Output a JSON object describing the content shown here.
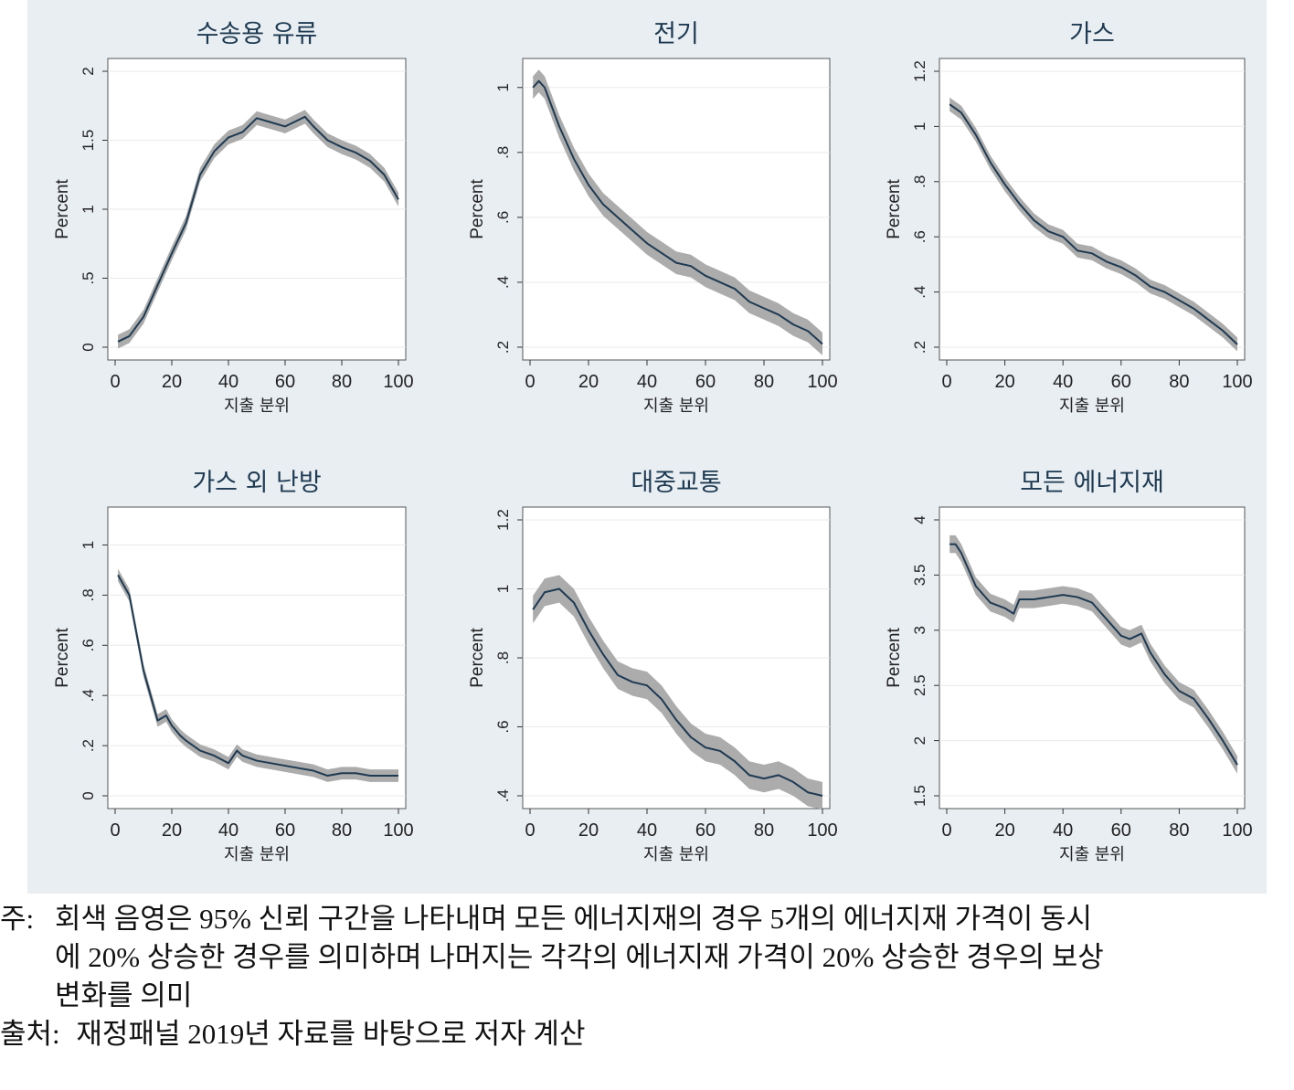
{
  "chart_data": [
    {
      "type": "area",
      "title": "수송용 유류",
      "xlabel": "지출 분위",
      "ylabel": "Percent",
      "xlim": [
        0,
        100
      ],
      "ylim": [
        0,
        2
      ],
      "xticks": [
        0,
        20,
        40,
        60,
        80,
        100
      ],
      "xtick_labels": [
        "0",
        "20",
        "40",
        "60",
        "80",
        "100"
      ],
      "yticks": [
        0,
        0.5,
        1,
        1.5,
        2
      ],
      "ytick_labels": [
        "0",
        ".5",
        "1",
        "1.5",
        "2"
      ],
      "ci_width": 0.05,
      "x": [
        1,
        5,
        10,
        15,
        20,
        25,
        30,
        35,
        40,
        45,
        50,
        55,
        60,
        65,
        67,
        70,
        75,
        80,
        85,
        90,
        95,
        100
      ],
      "y": [
        0.04,
        0.08,
        0.22,
        0.45,
        0.68,
        0.9,
        1.25,
        1.42,
        1.52,
        1.56,
        1.66,
        1.63,
        1.6,
        1.65,
        1.67,
        1.6,
        1.5,
        1.45,
        1.41,
        1.35,
        1.25,
        1.07
      ]
    },
    {
      "type": "area",
      "title": "전기",
      "xlabel": "지출 분위",
      "ylabel": "Percent",
      "xlim": [
        0,
        100
      ],
      "ylim": [
        0.2,
        1.05
      ],
      "xticks": [
        0,
        20,
        40,
        60,
        80,
        100
      ],
      "xtick_labels": [
        "0",
        "20",
        "40",
        "60",
        "80",
        "100"
      ],
      "yticks": [
        0.2,
        0.4,
        0.6,
        0.8,
        1
      ],
      "ytick_labels": [
        ".2",
        ".4",
        ".6",
        ".8",
        "1"
      ],
      "ci_width": 0.035,
      "x": [
        1,
        3,
        5,
        10,
        15,
        20,
        25,
        30,
        35,
        40,
        45,
        50,
        55,
        60,
        65,
        70,
        75,
        80,
        85,
        90,
        95,
        100
      ],
      "y": [
        1.0,
        1.02,
        1.0,
        0.88,
        0.78,
        0.7,
        0.64,
        0.6,
        0.56,
        0.52,
        0.49,
        0.46,
        0.45,
        0.42,
        0.4,
        0.38,
        0.34,
        0.32,
        0.3,
        0.27,
        0.25,
        0.21
      ]
    },
    {
      "type": "area",
      "title": "가스",
      "xlabel": "지출 분위",
      "ylabel": "Percent",
      "xlim": [
        0,
        100
      ],
      "ylim": [
        0.2,
        1.2
      ],
      "xticks": [
        0,
        20,
        40,
        60,
        80,
        100
      ],
      "xtick_labels": [
        "0",
        "20",
        "40",
        "60",
        "80",
        "100"
      ],
      "yticks": [
        0.2,
        0.4,
        0.6,
        0.8,
        1,
        1.2
      ],
      "ytick_labels": [
        ".2",
        ".4",
        ".6",
        ".8",
        "1",
        "1.2"
      ],
      "ci_width": 0.025,
      "x": [
        1,
        5,
        10,
        15,
        20,
        25,
        30,
        35,
        40,
        45,
        50,
        55,
        60,
        65,
        70,
        75,
        80,
        85,
        90,
        95,
        100
      ],
      "y": [
        1.08,
        1.05,
        0.97,
        0.87,
        0.79,
        0.72,
        0.66,
        0.62,
        0.6,
        0.55,
        0.54,
        0.51,
        0.49,
        0.46,
        0.42,
        0.4,
        0.37,
        0.34,
        0.3,
        0.26,
        0.21
      ]
    },
    {
      "type": "area",
      "title": "가스 외 난방",
      "xlabel": "지출 분위",
      "ylabel": "Percent",
      "xlim": [
        0,
        100
      ],
      "ylim": [
        0,
        1.1
      ],
      "xticks": [
        0,
        20,
        40,
        60,
        80,
        100
      ],
      "xtick_labels": [
        "0",
        "20",
        "40",
        "60",
        "80",
        "100"
      ],
      "yticks": [
        0,
        0.2,
        0.4,
        0.6,
        0.8,
        1
      ],
      "ytick_labels": [
        "0",
        ".2",
        ".4",
        ".6",
        ".8",
        "1"
      ],
      "ci_width": 0.025,
      "x": [
        1,
        5,
        8,
        10,
        13,
        15,
        18,
        20,
        23,
        25,
        30,
        35,
        40,
        43,
        45,
        50,
        55,
        60,
        65,
        70,
        75,
        80,
        85,
        90,
        95,
        100
      ],
      "y": [
        0.88,
        0.8,
        0.62,
        0.5,
        0.38,
        0.3,
        0.32,
        0.28,
        0.24,
        0.22,
        0.18,
        0.16,
        0.13,
        0.18,
        0.16,
        0.14,
        0.13,
        0.12,
        0.11,
        0.1,
        0.08,
        0.09,
        0.09,
        0.08,
        0.08,
        0.08
      ]
    },
    {
      "type": "area",
      "title": "대중교통",
      "xlabel": "지출 분위",
      "ylabel": "Percent",
      "xlim": [
        0,
        100
      ],
      "ylim": [
        0.4,
        1.2
      ],
      "xticks": [
        0,
        20,
        40,
        60,
        80,
        100
      ],
      "xtick_labels": [
        "0",
        "20",
        "40",
        "60",
        "80",
        "100"
      ],
      "yticks": [
        0.4,
        0.6,
        0.8,
        1,
        1.2
      ],
      "ytick_labels": [
        ".4",
        ".6",
        ".8",
        "1",
        "1.2"
      ],
      "ci_width": 0.04,
      "x": [
        1,
        5,
        10,
        15,
        20,
        25,
        30,
        35,
        40,
        45,
        50,
        55,
        60,
        65,
        70,
        75,
        80,
        85,
        90,
        95,
        100
      ],
      "y": [
        0.94,
        0.99,
        1.0,
        0.96,
        0.88,
        0.81,
        0.75,
        0.73,
        0.72,
        0.68,
        0.62,
        0.57,
        0.54,
        0.53,
        0.5,
        0.46,
        0.45,
        0.46,
        0.44,
        0.41,
        0.4
      ]
    },
    {
      "type": "area",
      "title": "모든 에너지재",
      "xlabel": "지출 분위",
      "ylabel": "Percent",
      "xlim": [
        0,
        100
      ],
      "ylim": [
        1.5,
        4
      ],
      "xticks": [
        0,
        20,
        40,
        60,
        80,
        100
      ],
      "xtick_labels": [
        "0",
        "20",
        "40",
        "60",
        "80",
        "100"
      ],
      "yticks": [
        1.5,
        2,
        2.5,
        3,
        3.5,
        4
      ],
      "ytick_labels": [
        "1.5",
        "2",
        "2.5",
        "3",
        "3.5",
        "4"
      ],
      "ci_width": 0.08,
      "x": [
        1,
        3,
        5,
        10,
        15,
        20,
        23,
        25,
        30,
        35,
        40,
        45,
        50,
        55,
        60,
        63,
        67,
        70,
        75,
        80,
        85,
        90,
        95,
        100
      ],
      "y": [
        3.78,
        3.78,
        3.7,
        3.4,
        3.25,
        3.2,
        3.15,
        3.28,
        3.28,
        3.3,
        3.32,
        3.3,
        3.25,
        3.1,
        2.95,
        2.92,
        2.97,
        2.8,
        2.6,
        2.45,
        2.38,
        2.2,
        2.0,
        1.78
      ]
    }
  ],
  "notes": {
    "note_label": "주:",
    "note_line1": "회색 음영은 95% 신뢰 구간을 나타내며 모든 에너지재의 경우 5개의 에너지재 가격이 동시",
    "note_line2": "에 20% 상승한 경우를 의미하며 나머지는 각각의 에너지재 가격이 20% 상승한 경우의 보상",
    "note_line3": "변화를 의미",
    "source_label": "출처:",
    "source_text": "재정패널 2019년 자료를 바탕으로 저자 계산"
  },
  "colors": {
    "background": "#e8eef2",
    "plot_bg": "#ffffff",
    "line": "#1e3a52",
    "ci": "#a3a3a3",
    "grid": "#eaeaea",
    "title": "#1e3a52"
  }
}
